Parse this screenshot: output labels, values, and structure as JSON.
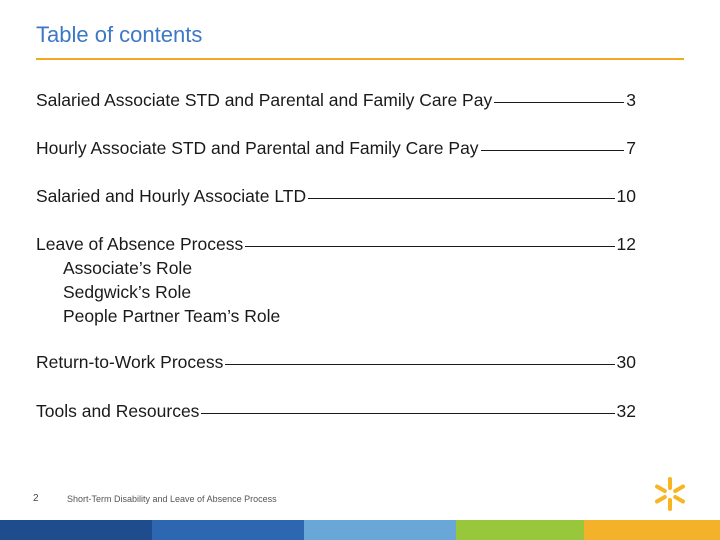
{
  "title": "Table of contents",
  "entries": [
    {
      "label": "Salaried Associate STD and Parental and Family Care Pay",
      "page": "3"
    },
    {
      "label": "Hourly Associate STD and Parental and Family Care Pay",
      "page": "7"
    },
    {
      "label": "Salaried and Hourly Associate LTD",
      "page": "10"
    },
    {
      "label": "Leave of Absence Process",
      "page": "12",
      "subitems": [
        "Associate’s Role",
        "Sedgwick’s Role",
        "People Partner Team’s Role"
      ]
    },
    {
      "label": "Return-to-Work Process",
      "page": "30"
    },
    {
      "label": "Tools and Resources",
      "page": "32"
    }
  ],
  "footer": {
    "page_number": "2",
    "document_title": "Short-Term Disability and Leave of Absence Process"
  },
  "colors": {
    "title": "#3d78c6",
    "rule": "#f5a623",
    "spark": "#f7b522",
    "bar": [
      "#1e4c8c",
      "#2e67b1",
      "#6aa7d9",
      "#98c73c",
      "#f3b22a"
    ]
  },
  "icons": {
    "logo": "spark-icon"
  }
}
